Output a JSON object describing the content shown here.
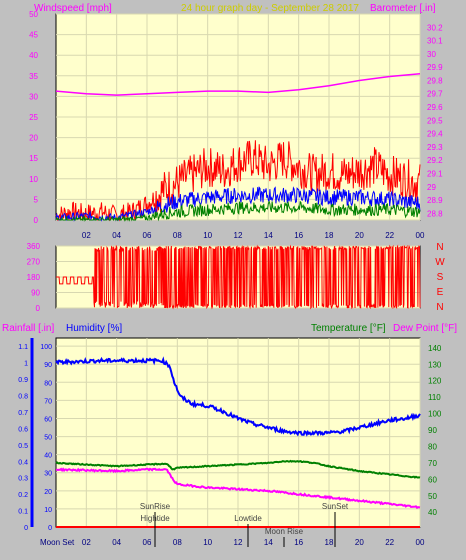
{
  "header": {
    "wind_label": "Windspeed [mph]",
    "title": "24 hour graph day - September 28 2017",
    "baro_label": "Barometer [.in]"
  },
  "lower_header": {
    "rain_label": "Rainfall [.in]",
    "hum_label": "Humidity [%]",
    "temp_label": "Temperature [°F]",
    "dew_label": "Dew Point [°F]"
  },
  "direction_labels": [
    "N",
    "W",
    "S",
    "E",
    "N"
  ],
  "colors": {
    "plot_bg": "#ffffcc",
    "panel_bg": "#c0c0c0",
    "wind_gust": "#ff0000",
    "wind_avg": "#0000ff",
    "wind_low": "#008000",
    "barometer": "#ff00ff",
    "direction": "#ff0000",
    "humidity": "#0000ff",
    "temperature": "#008000",
    "dew_point": "#ff00ff",
    "rainfall": "#ff0000"
  },
  "chart_data": [
    {
      "type": "line",
      "name": "wind-barometer",
      "x_ticks": [
        "02",
        "04",
        "06",
        "08",
        "10",
        "12",
        "14",
        "16",
        "18",
        "20",
        "22",
        "00"
      ],
      "y_left_ticks": [
        "0",
        "5",
        "10",
        "15",
        "20",
        "25",
        "30",
        "35",
        "40",
        "45",
        "50"
      ],
      "y_right_ticks": [
        "28.8",
        "28.9",
        "29",
        "29.1",
        "29.2",
        "29.3",
        "29.4",
        "29.5",
        "29.6",
        "29.7",
        "29.8",
        "29.9",
        "30",
        "30.1",
        "30.2"
      ],
      "ylim_left": [
        0,
        50
      ],
      "ylim_right": [
        28.75,
        30.3
      ],
      "xlim": [
        0,
        24
      ],
      "grid": true,
      "series": [
        {
          "key": "gust",
          "values": [
            [
              0,
              1
            ],
            [
              1,
              2
            ],
            [
              2,
              1.5
            ],
            [
              3,
              2
            ],
            [
              4,
              1
            ],
            [
              5,
              2
            ],
            [
              6,
              4
            ],
            [
              7,
              7
            ],
            [
              8,
              9
            ],
            [
              9,
              11
            ],
            [
              10,
              13
            ],
            [
              11,
              12
            ],
            [
              12,
              14
            ],
            [
              13,
              15
            ],
            [
              14,
              13
            ],
            [
              15,
              15
            ],
            [
              16,
              13
            ],
            [
              17,
              11
            ],
            [
              18,
              12
            ],
            [
              19,
              11
            ],
            [
              20,
              12
            ],
            [
              21,
              13
            ],
            [
              22,
              11
            ],
            [
              23,
              10
            ],
            [
              24,
              9
            ]
          ]
        },
        {
          "key": "avg",
          "values": [
            [
              0,
              0.5
            ],
            [
              2,
              1
            ],
            [
              4,
              0.5
            ],
            [
              6,
              2
            ],
            [
              7,
              3.5
            ],
            [
              8,
              4.5
            ],
            [
              9,
              5
            ],
            [
              10,
              5.5
            ],
            [
              12,
              6
            ],
            [
              14,
              6
            ],
            [
              16,
              6
            ],
            [
              18,
              5.5
            ],
            [
              20,
              5.5
            ],
            [
              22,
              5
            ],
            [
              24,
              4
            ]
          ]
        },
        {
          "key": "low",
          "values": [
            [
              0,
              0
            ],
            [
              4,
              0
            ],
            [
              6,
              0.5
            ],
            [
              7,
              1.5
            ],
            [
              8,
              2
            ],
            [
              10,
              2.5
            ],
            [
              12,
              3
            ],
            [
              14,
              3
            ],
            [
              16,
              3
            ],
            [
              18,
              2.5
            ],
            [
              20,
              2.5
            ],
            [
              22,
              2.5
            ],
            [
              24,
              2
            ]
          ]
        },
        {
          "key": "barometer",
          "values": [
            [
              0,
              29.72
            ],
            [
              2,
              29.7
            ],
            [
              4,
              29.69
            ],
            [
              6,
              29.7
            ],
            [
              8,
              29.71
            ],
            [
              10,
              29.72
            ],
            [
              12,
              29.72
            ],
            [
              14,
              29.71
            ],
            [
              16,
              29.73
            ],
            [
              18,
              29.76
            ],
            [
              20,
              29.8
            ],
            [
              22,
              29.83
            ],
            [
              24,
              29.85
            ]
          ]
        }
      ]
    },
    {
      "type": "scatter",
      "name": "wind-direction",
      "y_ticks": [
        "0",
        "90",
        "180",
        "270",
        "360"
      ],
      "ylim": [
        0,
        360
      ],
      "xlim": [
        0,
        24
      ]
    },
    {
      "type": "line",
      "name": "humidity-temperature",
      "x_ticks": [
        "02",
        "04",
        "06",
        "08",
        "10",
        "12",
        "14",
        "16",
        "18",
        "20",
        "22",
        "00"
      ],
      "y_left_ticks": [
        "0",
        "0.1",
        "0.2",
        "0.3",
        "0.4",
        "0.5",
        "0.6",
        "0.7",
        "0.8",
        "0.9",
        "1",
        "1.1"
      ],
      "y_mid_ticks": [
        "0",
        "10",
        "20",
        "30",
        "40",
        "50",
        "60",
        "70",
        "80",
        "90",
        "100"
      ],
      "y_right_ticks": [
        "40",
        "50",
        "60",
        "70",
        "80",
        "90",
        "100",
        "110",
        "120",
        "130",
        "140"
      ],
      "ylim_left": [
        0,
        1.15
      ],
      "ylim_mid": [
        0,
        104.5
      ],
      "ylim_right": [
        31,
        146
      ],
      "xlim": [
        0,
        24
      ],
      "grid": true,
      "series": [
        {
          "key": "humidity",
          "values": [
            [
              0,
              91
            ],
            [
              3,
              92
            ],
            [
              5,
              92
            ],
            [
              7,
              92
            ],
            [
              7.5,
              89
            ],
            [
              7.8,
              80
            ],
            [
              8.2,
              72
            ],
            [
              9,
              68
            ],
            [
              10,
              67
            ],
            [
              11,
              64
            ],
            [
              12,
              60
            ],
            [
              13,
              57
            ],
            [
              14,
              55
            ],
            [
              15,
              53
            ],
            [
              16,
              52
            ],
            [
              17,
              52
            ],
            [
              18,
              52
            ],
            [
              19,
              53
            ],
            [
              20,
              55
            ],
            [
              21,
              57
            ],
            [
              22,
              59
            ],
            [
              23,
              60
            ],
            [
              24,
              62
            ]
          ]
        },
        {
          "key": "temperature",
          "values": [
            [
              0,
              70
            ],
            [
              2,
              69
            ],
            [
              4,
              68
            ],
            [
              6,
              69
            ],
            [
              7.3,
              69.5
            ],
            [
              7.7,
              66
            ],
            [
              8,
              67
            ],
            [
              10,
              68
            ],
            [
              12,
              69
            ],
            [
              14,
              70
            ],
            [
              15,
              71
            ],
            [
              16,
              71
            ],
            [
              17,
              70
            ],
            [
              18,
              68
            ],
            [
              20,
              65
            ],
            [
              22,
              63
            ],
            [
              24,
              61
            ]
          ]
        },
        {
          "key": "dew_point",
          "values": [
            [
              0,
              66
            ],
            [
              2,
              65.5
            ],
            [
              4,
              65
            ],
            [
              6,
              66
            ],
            [
              7.3,
              66
            ],
            [
              7.7,
              60
            ],
            [
              8,
              57
            ],
            [
              10,
              55
            ],
            [
              12,
              54
            ],
            [
              14,
              53
            ],
            [
              16,
              51
            ],
            [
              18,
              49
            ],
            [
              20,
              47
            ],
            [
              22,
              45
            ],
            [
              24,
              43
            ]
          ]
        },
        {
          "key": "rainfall",
          "values": [
            [
              0,
              0
            ],
            [
              24,
              0
            ]
          ]
        }
      ],
      "annotations": [
        "Moon Set",
        "SunRise",
        "Hightide",
        "Lowtide",
        "Moon Rise",
        "SunSet"
      ]
    }
  ]
}
